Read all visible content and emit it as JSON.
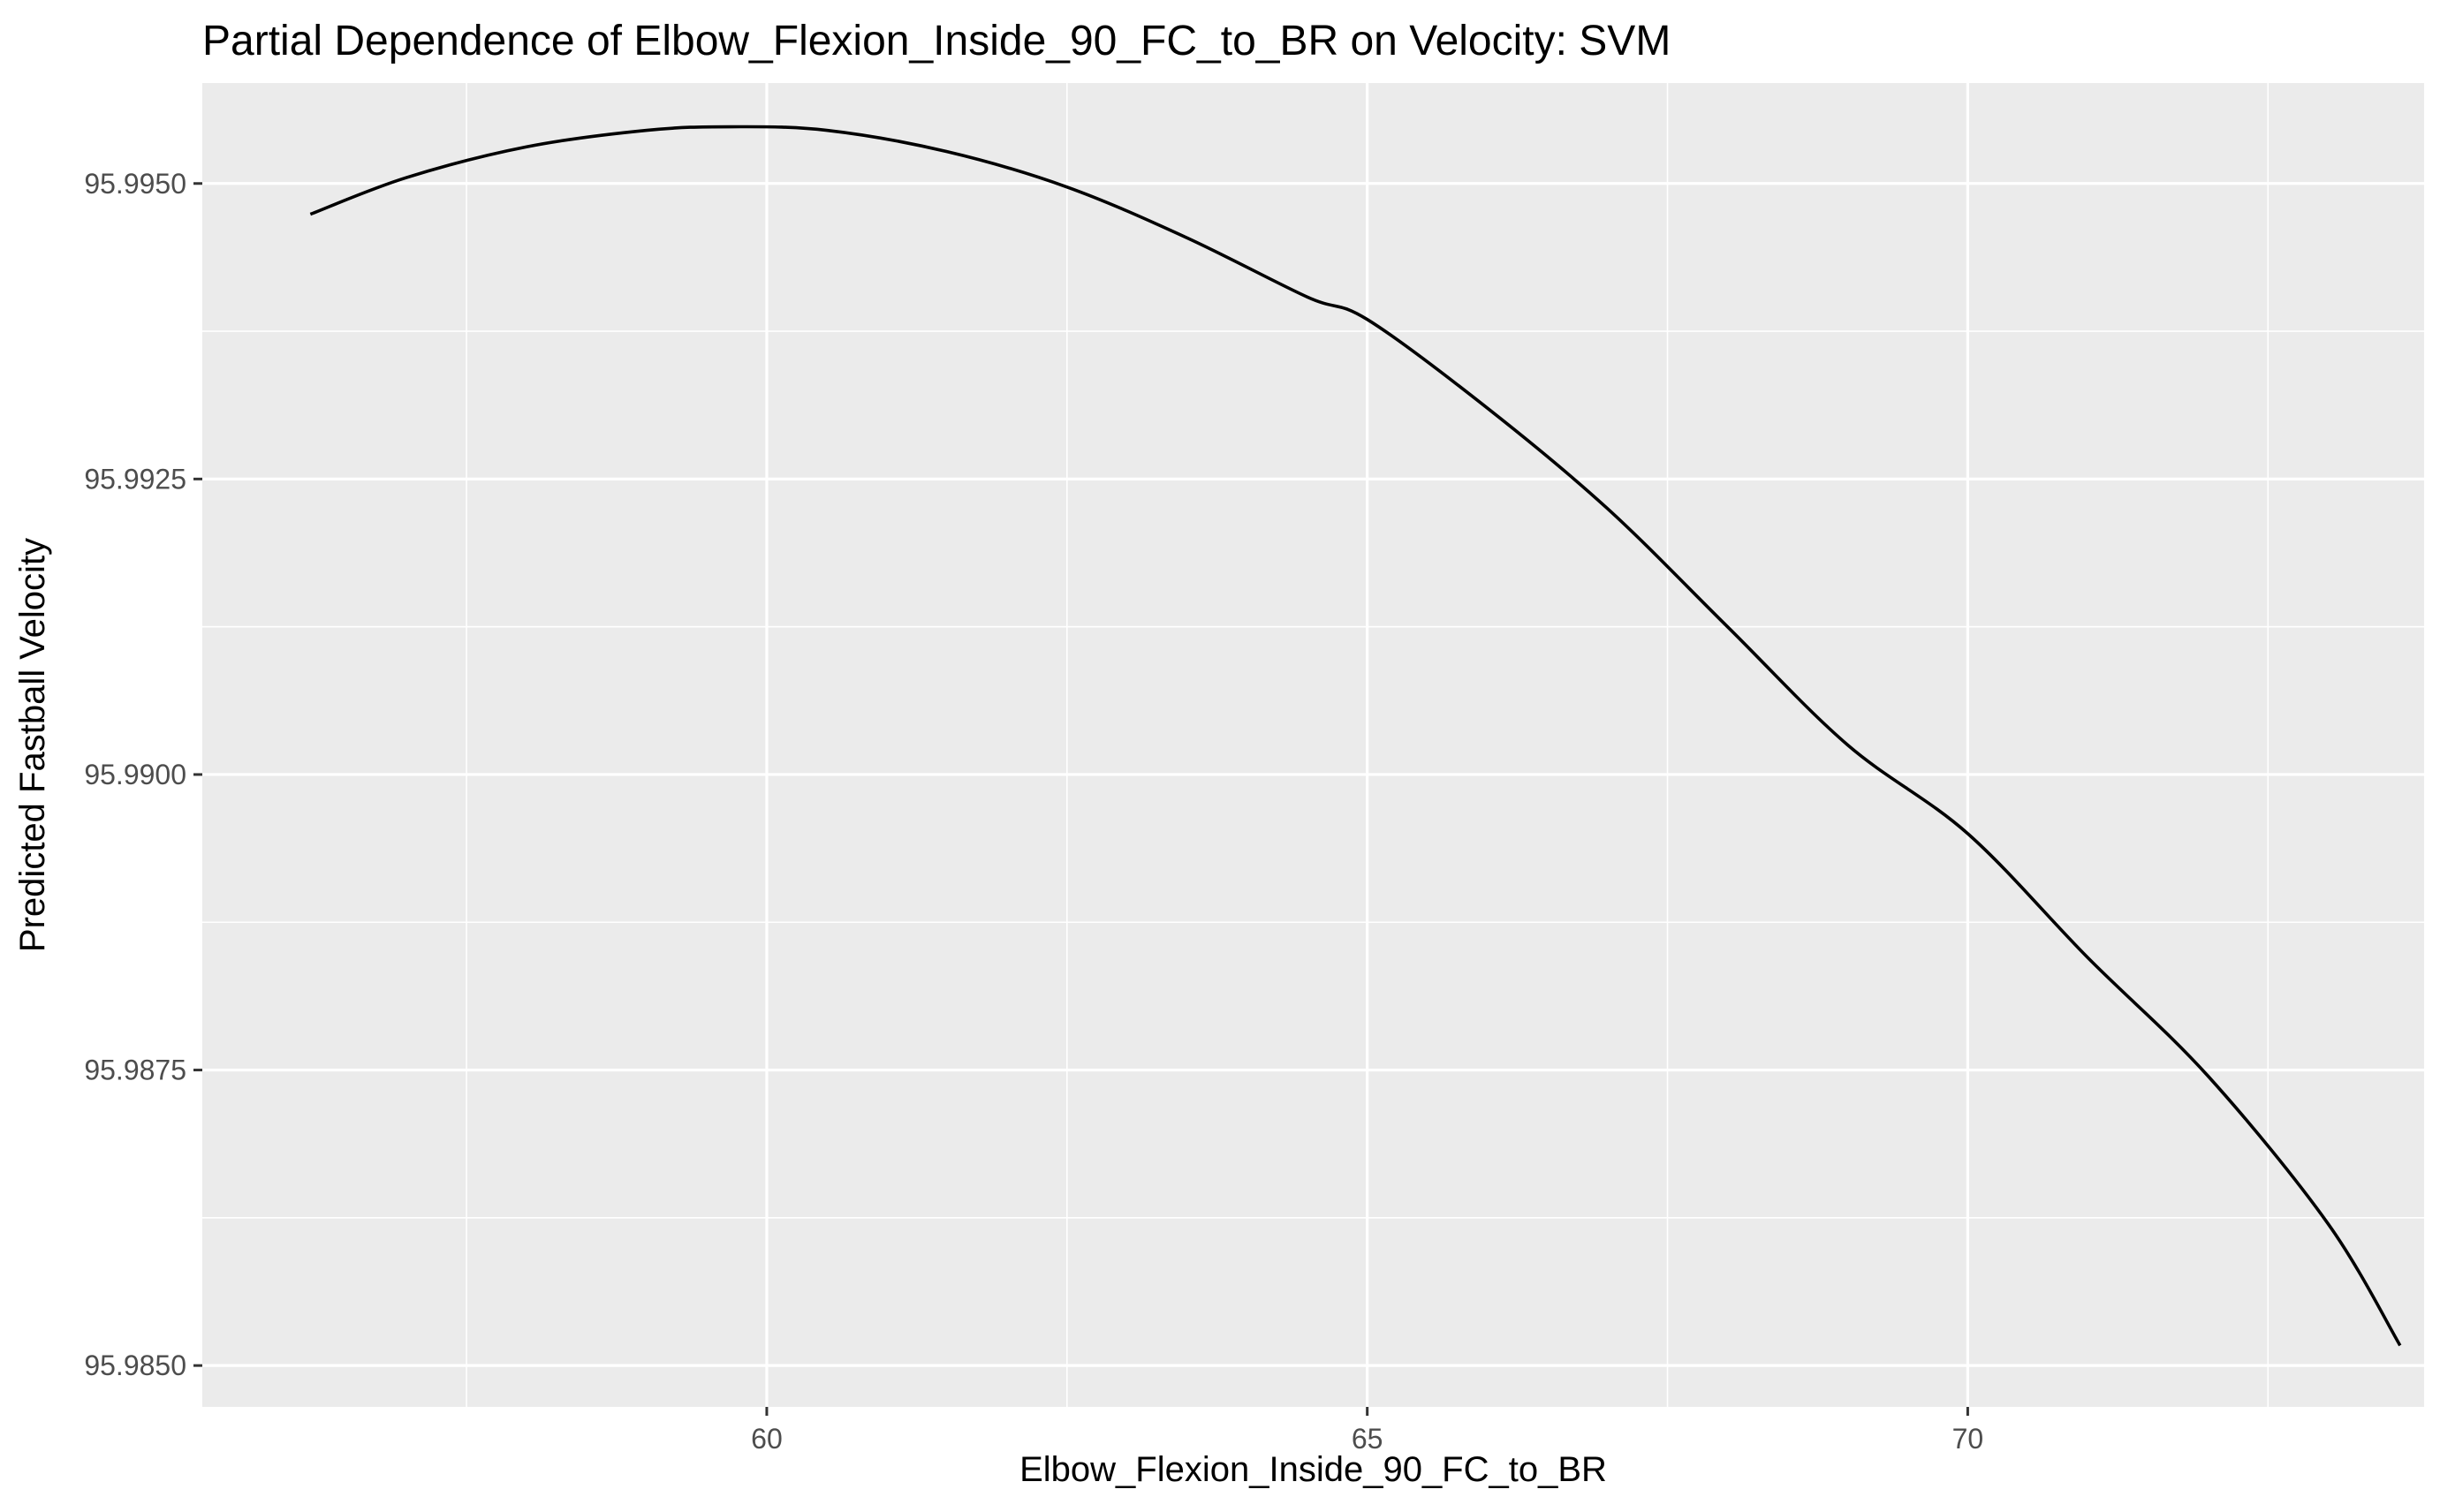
{
  "chart_data": {
    "type": "line",
    "title": "Partial Dependence of Elbow_Flexion_Inside_90_FC_to_BR on Velocity: SVM",
    "xlabel": "Elbow_Flexion_Inside_90_FC_to_BR",
    "ylabel": "Predicted Fastball Velocity",
    "xlim": [
      55.3,
      73.8
    ],
    "ylim": [
      95.98465,
      95.99585
    ],
    "x_ticks": [
      60,
      65,
      70
    ],
    "x_tick_labels": [
      "60",
      "65",
      "70"
    ],
    "y_ticks": [
      95.985,
      95.9875,
      95.99,
      95.9925,
      95.995
    ],
    "y_tick_labels": [
      "95.9850",
      "95.9875",
      "95.9900",
      "95.9925",
      "95.9950"
    ],
    "grid": true,
    "legend": "none",
    "colors": {
      "panel_background": "#ebebeb",
      "grid": "#ffffff",
      "line": "#000000"
    },
    "series": [
      {
        "x": [
          56.2,
          57.0,
          58.0,
          59.0,
          59.7,
          60.5,
          61.5,
          62.5,
          63.5,
          64.5,
          65.0,
          66.0,
          67.0,
          68.0,
          69.0,
          70.0,
          71.0,
          72.0,
          73.0,
          73.6
        ],
        "values": [
          95.99474,
          95.99505,
          95.99531,
          95.99545,
          95.99548,
          95.99545,
          95.99527,
          95.99497,
          95.99454,
          95.99404,
          95.99385,
          95.9931,
          95.99225,
          95.99125,
          95.99025,
          95.9895,
          95.98845,
          95.98745,
          95.9862,
          95.98517
        ]
      }
    ]
  }
}
